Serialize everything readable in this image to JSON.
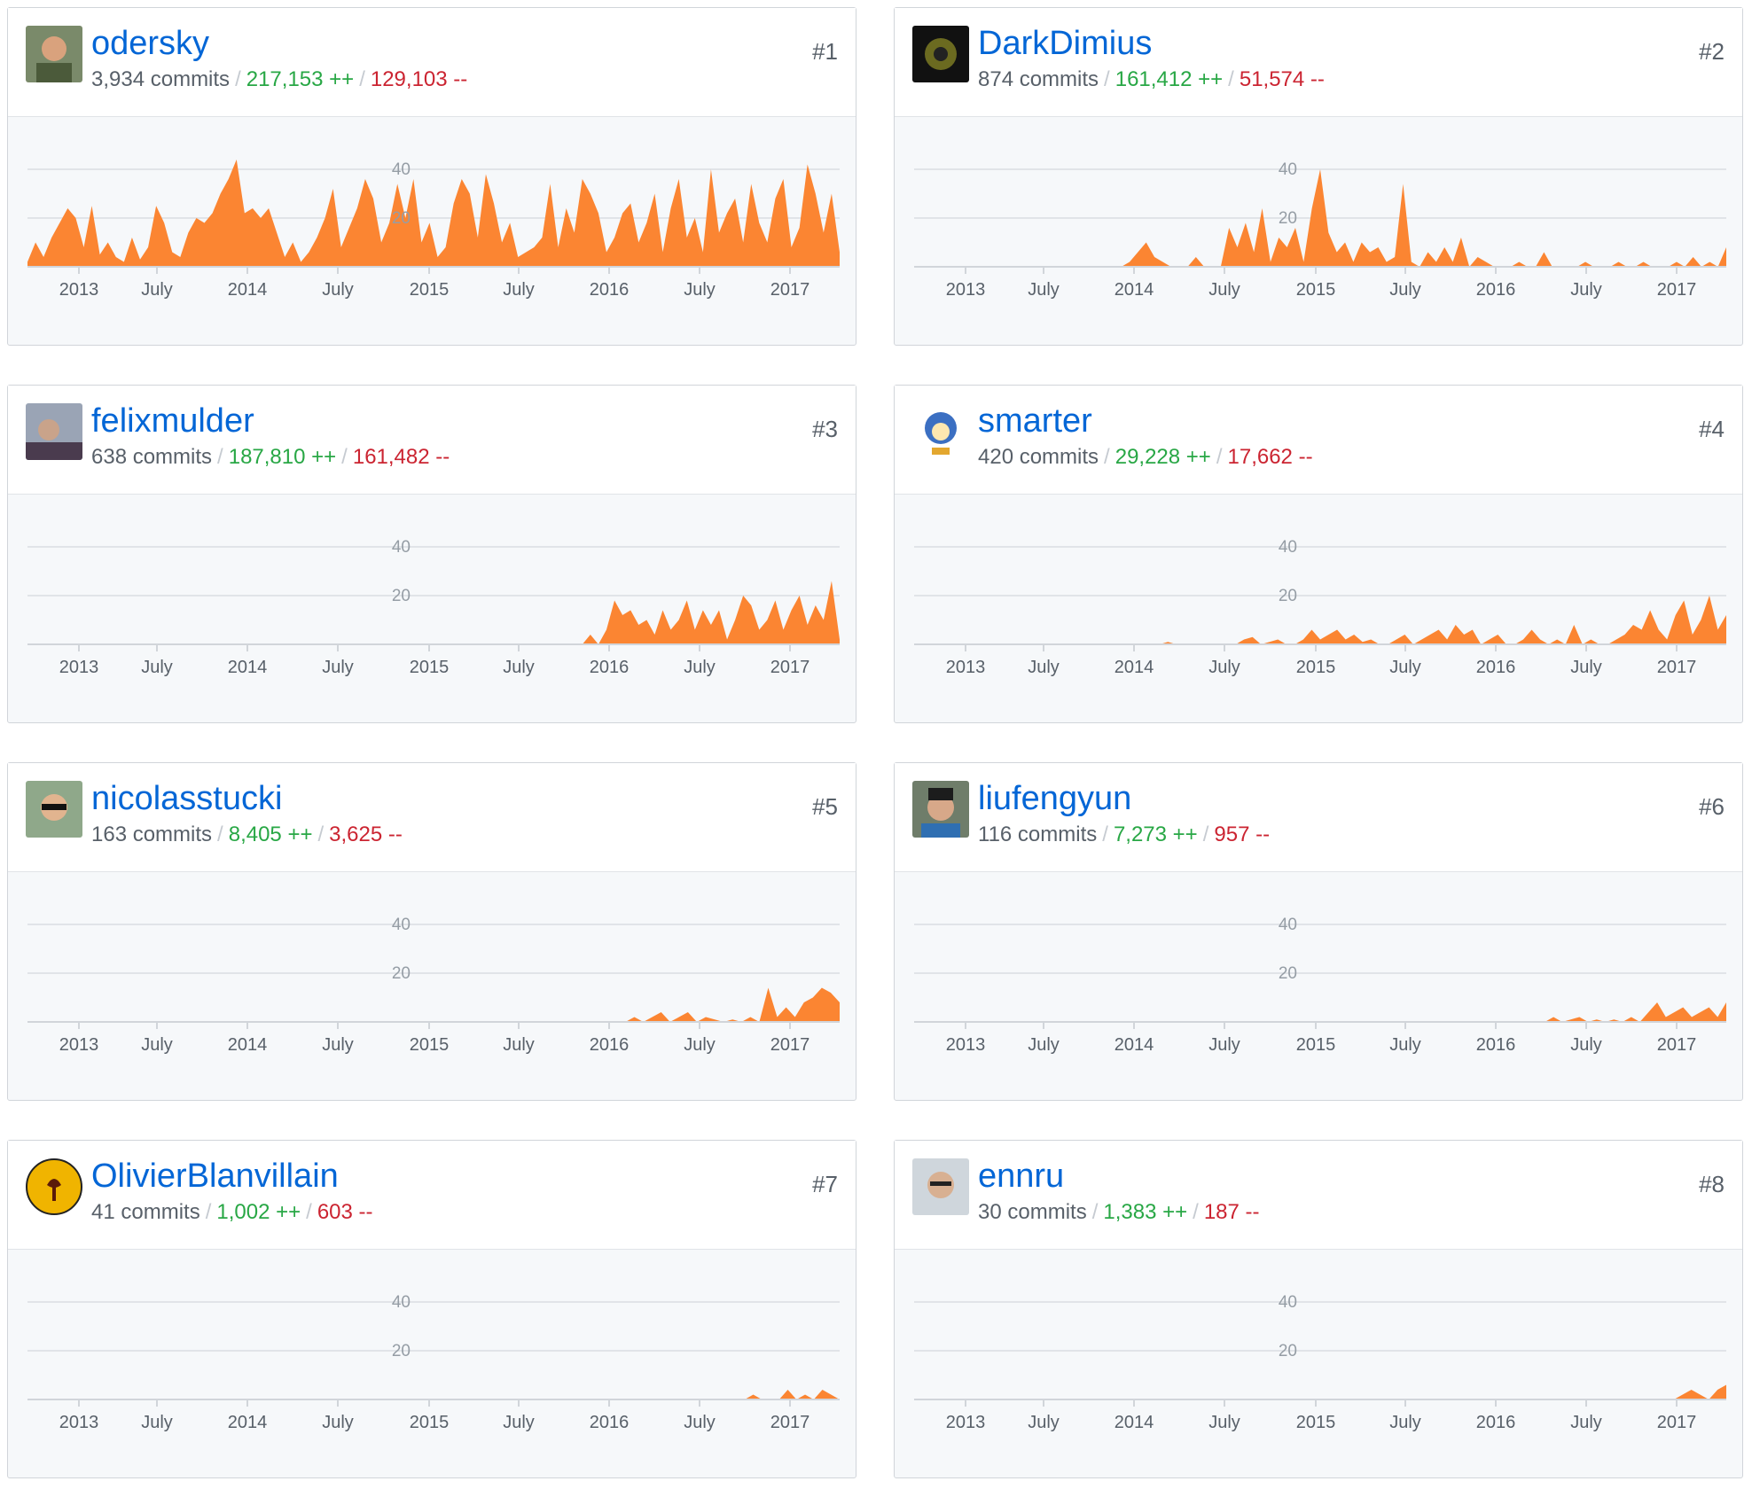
{
  "chart_data": [
    {
      "type": "area",
      "rank": "#1",
      "login": "odersky",
      "commits": "3,934 commits",
      "additions": "217,153 ++",
      "deletions": "129,103 --",
      "avatar": "avatar-photo-man",
      "series": [
        {
          "values": [
            2,
            10,
            4,
            12,
            18,
            24,
            20,
            8,
            25,
            5,
            10,
            4,
            2,
            12,
            3,
            8,
            25,
            18,
            6,
            4,
            14,
            20,
            18,
            22,
            30,
            36,
            44,
            22,
            24,
            20,
            24,
            14,
            4,
            10,
            2,
            6,
            12,
            20,
            32,
            8,
            16,
            24,
            36,
            28,
            10,
            18,
            34,
            20,
            36,
            10,
            18,
            4,
            8,
            26,
            36,
            30,
            12,
            38,
            26,
            10,
            18,
            4,
            6,
            8,
            12,
            34,
            8,
            24,
            14,
            36,
            30,
            22,
            6,
            12,
            22,
            26,
            10,
            18,
            30,
            6,
            24,
            36,
            12,
            20,
            6,
            40,
            14,
            22,
            28,
            10,
            34,
            18,
            10,
            28,
            36,
            8,
            16,
            42,
            30,
            14,
            30,
            6
          ]
        }
      ]
    },
    {
      "type": "area",
      "rank": "#2",
      "login": "DarkDimius",
      "commits": "874 commits",
      "additions": "161,412 ++",
      "deletions": "51,574 --",
      "avatar": "avatar-dark-emblem",
      "series": [
        {
          "values": [
            0,
            0,
            0,
            0,
            0,
            0,
            0,
            0,
            0,
            0,
            0,
            0,
            0,
            0,
            0,
            0,
            0,
            0,
            0,
            0,
            0,
            0,
            0,
            0,
            0,
            0,
            2,
            6,
            10,
            4,
            2,
            0,
            0,
            0,
            4,
            0,
            0,
            0,
            16,
            8,
            18,
            6,
            24,
            2,
            12,
            8,
            16,
            2,
            24,
            40,
            14,
            6,
            10,
            2,
            10,
            6,
            8,
            2,
            4,
            34,
            2,
            0,
            6,
            2,
            8,
            2,
            12,
            0,
            4,
            2,
            0,
            0,
            0,
            2,
            0,
            0,
            6,
            0,
            0,
            0,
            0,
            2,
            0,
            0,
            0,
            2,
            0,
            0,
            2,
            0,
            0,
            0,
            2,
            0,
            4,
            0,
            2,
            0,
            8
          ]
        }
      ]
    },
    {
      "type": "area",
      "rank": "#3",
      "login": "felixmulder",
      "commits": "638 commits",
      "additions": "187,810 ++",
      "deletions": "161,482 --",
      "avatar": "avatar-profile-photo",
      "series": [
        {
          "values": [
            0,
            0,
            0,
            0,
            0,
            0,
            0,
            0,
            0,
            0,
            0,
            0,
            0,
            0,
            0,
            0,
            0,
            0,
            0,
            0,
            0,
            0,
            0,
            0,
            0,
            0,
            0,
            0,
            0,
            0,
            0,
            0,
            0,
            0,
            0,
            0,
            0,
            0,
            0,
            0,
            0,
            0,
            0,
            0,
            0,
            0,
            0,
            0,
            0,
            0,
            0,
            0,
            0,
            0,
            0,
            0,
            0,
            0,
            0,
            0,
            0,
            0,
            0,
            0,
            0,
            0,
            0,
            0,
            0,
            0,
            4,
            0,
            6,
            18,
            12,
            14,
            8,
            10,
            4,
            14,
            6,
            10,
            18,
            6,
            14,
            8,
            14,
            2,
            10,
            20,
            16,
            6,
            10,
            18,
            6,
            14,
            20,
            8,
            16,
            10,
            26,
            2
          ]
        }
      ]
    },
    {
      "type": "area",
      "rank": "#4",
      "login": "smarter",
      "commits": "420 commits",
      "additions": "29,228 ++",
      "deletions": "17,662 --",
      "avatar": "avatar-cartoon-bird",
      "series": [
        {
          "values": [
            0,
            0,
            0,
            0,
            0,
            0,
            0,
            0,
            0,
            0,
            0,
            0,
            0,
            0,
            0,
            0,
            0,
            0,
            0,
            0,
            0,
            0,
            0,
            0,
            0,
            0,
            0,
            0,
            0,
            0,
            1,
            0,
            0,
            0,
            0,
            0,
            0,
            0,
            0,
            2,
            3,
            0,
            1,
            2,
            0,
            0,
            2,
            6,
            2,
            4,
            6,
            2,
            4,
            1,
            2,
            0,
            0,
            2,
            4,
            0,
            2,
            4,
            6,
            2,
            8,
            4,
            6,
            0,
            2,
            4,
            0,
            0,
            2,
            6,
            2,
            0,
            2,
            0,
            8,
            0,
            2,
            0,
            0,
            2,
            4,
            8,
            6,
            14,
            6,
            2,
            12,
            18,
            4,
            10,
            20,
            6,
            12
          ]
        }
      ]
    },
    {
      "type": "area",
      "rank": "#5",
      "login": "nicolasstucki",
      "commits": "163 commits",
      "additions": "8,405 ++",
      "deletions": "3,625 --",
      "avatar": "avatar-sunglasses-photo",
      "series": [
        {
          "values": [
            0,
            0,
            0,
            0,
            0,
            0,
            0,
            0,
            0,
            0,
            0,
            0,
            0,
            0,
            0,
            0,
            0,
            0,
            0,
            0,
            0,
            0,
            0,
            0,
            0,
            0,
            0,
            0,
            0,
            0,
            0,
            0,
            0,
            0,
            0,
            0,
            0,
            0,
            0,
            0,
            0,
            0,
            0,
            0,
            0,
            0,
            0,
            0,
            0,
            0,
            0,
            0,
            0,
            0,
            0,
            0,
            0,
            0,
            0,
            0,
            0,
            0,
            0,
            0,
            0,
            0,
            0,
            0,
            2,
            0,
            2,
            4,
            0,
            2,
            4,
            0,
            2,
            1,
            0,
            1,
            0,
            2,
            0,
            14,
            2,
            6,
            2,
            8,
            10,
            14,
            12,
            8
          ]
        }
      ]
    },
    {
      "type": "area",
      "rank": "#6",
      "login": "liufengyun",
      "commits": "116 commits",
      "additions": "7,273 ++",
      "deletions": "957 --",
      "avatar": "avatar-glasses-photo",
      "series": [
        {
          "values": [
            0,
            0,
            0,
            0,
            0,
            0,
            0,
            0,
            0,
            0,
            0,
            0,
            0,
            0,
            0,
            0,
            0,
            0,
            0,
            0,
            0,
            0,
            0,
            0,
            0,
            0,
            0,
            0,
            0,
            0,
            0,
            0,
            0,
            0,
            0,
            0,
            0,
            0,
            0,
            0,
            0,
            0,
            0,
            0,
            0,
            0,
            0,
            0,
            0,
            0,
            0,
            0,
            0,
            0,
            0,
            0,
            0,
            0,
            0,
            0,
            0,
            0,
            0,
            0,
            0,
            0,
            0,
            0,
            0,
            0,
            0,
            0,
            0,
            0,
            2,
            0,
            1,
            2,
            0,
            1,
            0,
            1,
            0,
            2,
            0,
            4,
            8,
            2,
            4,
            6,
            2,
            4,
            6,
            2,
            8
          ]
        }
      ]
    },
    {
      "type": "area",
      "rank": "#7",
      "login": "OlivierBlanvillain",
      "commits": "41 commits",
      "additions": "1,002 ++",
      "deletions": "603 --",
      "avatar": "avatar-yellow-emblem",
      "series": [
        {
          "values": [
            0,
            0,
            0,
            0,
            0,
            0,
            0,
            0,
            0,
            0,
            0,
            0,
            0,
            0,
            0,
            0,
            0,
            0,
            0,
            0,
            0,
            0,
            0,
            0,
            0,
            0,
            0,
            0,
            0,
            0,
            0,
            0,
            0,
            0,
            0,
            0,
            0,
            0,
            0,
            0,
            0,
            0,
            0,
            0,
            0,
            0,
            0,
            0,
            0,
            0,
            0,
            0,
            0,
            0,
            0,
            0,
            0,
            0,
            0,
            0,
            0,
            0,
            0,
            0,
            0,
            0,
            0,
            0,
            0,
            0,
            0,
            0,
            0,
            0,
            0,
            0,
            0,
            0,
            0,
            0,
            0,
            0,
            0,
            0,
            2,
            0,
            0,
            0,
            4,
            0,
            2,
            0,
            4,
            2,
            0
          ]
        }
      ]
    },
    {
      "type": "area",
      "rank": "#8",
      "login": "ennru",
      "commits": "30 commits",
      "additions": "1,383 ++",
      "deletions": "187 --",
      "avatar": "avatar-glasses-man",
      "series": [
        {
          "values": [
            0,
            0,
            0,
            0,
            0,
            0,
            0,
            0,
            0,
            0,
            0,
            0,
            0,
            0,
            0,
            0,
            0,
            0,
            0,
            0,
            0,
            0,
            0,
            0,
            0,
            0,
            0,
            0,
            0,
            0,
            0,
            0,
            0,
            0,
            0,
            0,
            0,
            0,
            0,
            0,
            0,
            0,
            0,
            0,
            0,
            0,
            0,
            0,
            0,
            0,
            0,
            0,
            0,
            0,
            0,
            0,
            0,
            0,
            0,
            0,
            0,
            0,
            0,
            0,
            0,
            0,
            0,
            0,
            0,
            0,
            0,
            0,
            0,
            0,
            0,
            0,
            0,
            0,
            0,
            0,
            0,
            0,
            0,
            0,
            0,
            0,
            0,
            0,
            2,
            4,
            2,
            0,
            4,
            6
          ]
        }
      ]
    }
  ],
  "shared": {
    "x_ticks": [
      "2013",
      "July",
      "2014",
      "July",
      "2015",
      "July",
      "2016",
      "July",
      "2017"
    ],
    "y_ticks": [
      "20",
      "40"
    ],
    "ylim": [
      0,
      40
    ],
    "area_color": "#fb8532",
    "axis_color": "#e1e4e8"
  }
}
